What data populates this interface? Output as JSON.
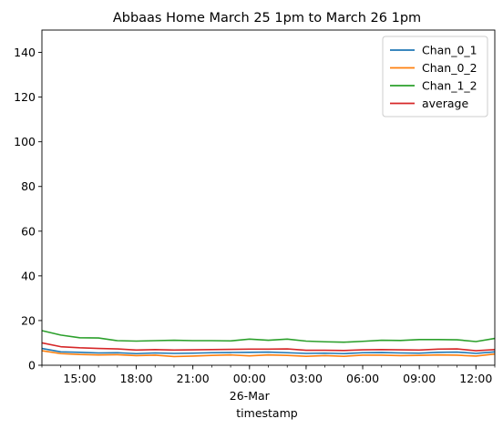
{
  "chart_data": {
    "type": "line",
    "title": "Abbaas Home March 25 1pm to March 26 1pm",
    "xlabel": "timestamp",
    "ylabel": "",
    "x_range": [
      "2025-03-25 13:00",
      "2025-03-26 13:00"
    ],
    "ylim": [
      0,
      150
    ],
    "yticks": [
      0,
      20,
      40,
      60,
      80,
      100,
      120,
      140
    ],
    "xticks": [
      {
        "time": "2025-03-25 15:00",
        "label": "15:00",
        "sublabel": ""
      },
      {
        "time": "2025-03-25 18:00",
        "label": "18:00",
        "sublabel": ""
      },
      {
        "time": "2025-03-25 21:00",
        "label": "21:00",
        "sublabel": ""
      },
      {
        "time": "2025-03-26 00:00",
        "label": "00:00",
        "sublabel": "26-Mar"
      },
      {
        "time": "2025-03-26 03:00",
        "label": "03:00",
        "sublabel": ""
      },
      {
        "time": "2025-03-26 06:00",
        "label": "06:00",
        "sublabel": ""
      },
      {
        "time": "2025-03-26 09:00",
        "label": "09:00",
        "sublabel": ""
      },
      {
        "time": "2025-03-26 12:00",
        "label": "12:00",
        "sublabel": ""
      }
    ],
    "x": [
      "2025-03-25 13:00",
      "2025-03-25 14:00",
      "2025-03-25 15:00",
      "2025-03-25 16:00",
      "2025-03-25 17:00",
      "2025-03-25 18:00",
      "2025-03-25 19:00",
      "2025-03-25 20:00",
      "2025-03-25 21:00",
      "2025-03-25 22:00",
      "2025-03-25 23:00",
      "2025-03-26 00:00",
      "2025-03-26 01:00",
      "2025-03-26 02:00",
      "2025-03-26 03:00",
      "2025-03-26 04:00",
      "2025-03-26 05:00",
      "2025-03-26 06:00",
      "2025-03-26 07:00",
      "2025-03-26 08:00",
      "2025-03-26 09:00",
      "2025-03-26 10:00",
      "2025-03-26 11:00",
      "2025-03-26 12:00",
      "2025-03-26 13:00"
    ],
    "series": [
      {
        "name": "Chan_0_1",
        "color": "#1f77b4",
        "values": [
          7.5,
          6.0,
          5.8,
          5.5,
          5.6,
          5.2,
          5.5,
          5.3,
          5.4,
          5.6,
          5.7,
          5.8,
          5.9,
          5.6,
          5.3,
          5.4,
          5.2,
          5.6,
          5.7,
          5.5,
          5.4,
          5.8,
          5.9,
          5.3,
          6.0
        ]
      },
      {
        "name": "Chan_0_2",
        "color": "#ff7f0e",
        "values": [
          6.5,
          5.2,
          4.8,
          4.6,
          4.7,
          4.3,
          4.5,
          3.9,
          4.1,
          4.4,
          4.6,
          4.2,
          4.6,
          4.4,
          4.0,
          4.3,
          4.0,
          4.5,
          4.5,
          4.3,
          4.4,
          4.6,
          4.5,
          4.1,
          5.0
        ]
      },
      {
        "name": "Chan_1_2",
        "color": "#2ca02c",
        "values": [
          15.5,
          13.5,
          12.3,
          12.2,
          11.0,
          10.8,
          11.0,
          11.2,
          11.0,
          11.0,
          10.9,
          11.7,
          11.2,
          11.7,
          10.8,
          10.5,
          10.3,
          10.7,
          11.2,
          11.1,
          11.5,
          11.5,
          11.4,
          10.6,
          12.0
        ]
      },
      {
        "name": "average",
        "color": "#d62728",
        "values": [
          10.0,
          8.3,
          7.8,
          7.5,
          7.3,
          6.8,
          7.0,
          6.8,
          6.9,
          7.0,
          7.1,
          7.2,
          7.2,
          7.3,
          6.7,
          6.7,
          6.6,
          6.9,
          7.0,
          6.9,
          6.8,
          7.2,
          7.3,
          6.5,
          7.0
        ]
      }
    ],
    "legend_position": "top-right",
    "grid": false
  }
}
